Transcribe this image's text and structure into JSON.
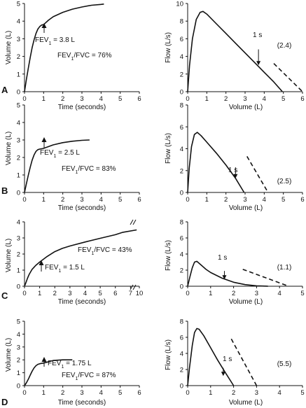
{
  "chart_data": [
    {
      "type": "line",
      "panel": "A",
      "kind": "spirogram",
      "xlabel": "Time (seconds)",
      "ylabel": "Volume (L)",
      "xlim": [
        0,
        6
      ],
      "ylim": [
        0,
        5
      ],
      "xticks": [
        "0",
        "1",
        "2",
        "3",
        "4",
        "5",
        "6"
      ],
      "yticks": [
        "0",
        "1",
        "2",
        "3",
        "4",
        "5"
      ],
      "series": [
        {
          "x": [
            0,
            0.1,
            0.2,
            0.3,
            0.4,
            0.5,
            0.6,
            0.7,
            0.8,
            0.9,
            1.0,
            1.25,
            1.5,
            2.0,
            2.5,
            3.0,
            3.5,
            4.0,
            4.15
          ],
          "y": [
            0,
            0.7,
            1.35,
            1.95,
            2.5,
            2.95,
            3.3,
            3.55,
            3.7,
            3.78,
            3.8,
            4.05,
            4.25,
            4.5,
            4.68,
            4.8,
            4.9,
            4.95,
            4.97
          ]
        }
      ],
      "annotations": {
        "fev1_base": "FEV",
        "fev1_sub": "1",
        "fev1_value": " = 3.8 L",
        "ratio_base": "FEV",
        "ratio_sub": "1",
        "ratio_value": "/FVC = 76%"
      }
    },
    {
      "type": "line",
      "panel": "A",
      "kind": "flow-volume",
      "xlabel": "Volume (L)",
      "ylabel": "Flow (L/s)",
      "xlim": [
        0,
        6
      ],
      "ylim": [
        0,
        10
      ],
      "xticks": [
        "0",
        "1",
        "2",
        "3",
        "4",
        "5",
        "6"
      ],
      "yticks": [
        "0",
        "2",
        "4",
        "6",
        "8",
        "10"
      ],
      "series": [
        {
          "x": [
            0,
            0.1,
            0.25,
            0.45,
            0.65,
            0.8,
            1.0,
            1.5,
            2.0,
            2.5,
            3.0,
            3.5,
            4.0,
            4.5,
            4.95
          ],
          "y": [
            0,
            3.0,
            6.0,
            8.2,
            9.0,
            9.1,
            8.8,
            7.7,
            6.6,
            5.5,
            4.4,
            3.3,
            2.2,
            1.1,
            0
          ]
        }
      ],
      "dashed": [
        4.5,
        3.2,
        6.0,
        0
      ],
      "marker": {
        "x": 3.7,
        "y_top": 4.8,
        "y_tip": 3.0,
        "label": "1 s"
      },
      "value_label": "(2.4)"
    },
    {
      "type": "line",
      "panel": "B",
      "kind": "spirogram",
      "xlabel": "Time (seconds)",
      "ylabel": "Volume (L)",
      "xlim": [
        0,
        6
      ],
      "ylim": [
        0,
        5
      ],
      "xticks": [
        "0",
        "1",
        "2",
        "3",
        "4",
        "5",
        "6"
      ],
      "yticks": [
        "0",
        "1",
        "2",
        "3",
        "4",
        "5"
      ],
      "series": [
        {
          "x": [
            0,
            0.1,
            0.2,
            0.3,
            0.4,
            0.5,
            0.6,
            0.7,
            0.8,
            0.9,
            1.0,
            1.5,
            2.0,
            2.5,
            3.0,
            3.4
          ],
          "y": [
            0,
            0.5,
            1.0,
            1.45,
            1.85,
            2.15,
            2.35,
            2.45,
            2.48,
            2.5,
            2.52,
            2.72,
            2.85,
            2.93,
            2.98,
            3.0
          ]
        }
      ],
      "annotations": {
        "fev1_base": "FEV",
        "fev1_sub": "1",
        "fev1_value": " = 2.5 L",
        "ratio_base": "FEV",
        "ratio_sub": "1",
        "ratio_value": "/FVC = 83%"
      }
    },
    {
      "type": "line",
      "panel": "B",
      "kind": "flow-volume",
      "xlabel": "Volume (L)",
      "ylabel": "Flow (L/s)",
      "xlim": [
        0,
        6
      ],
      "ylim": [
        0,
        8
      ],
      "xticks": [
        "0",
        "1",
        "2",
        "3",
        "4",
        "5",
        "6"
      ],
      "yticks": [
        "0",
        "2",
        "4",
        "6",
        "8"
      ],
      "series": [
        {
          "x": [
            0,
            0.08,
            0.2,
            0.35,
            0.5,
            0.7,
            1.0,
            1.5,
            2.0,
            2.5,
            2.95
          ],
          "y": [
            0,
            2.2,
            4.2,
            5.3,
            5.5,
            5.2,
            4.6,
            3.6,
            2.5,
            1.3,
            0
          ]
        }
      ],
      "dashed": [
        3.1,
        3.3,
        4.2,
        0
      ],
      "marker": {
        "x": 2.5,
        "y_top": 2.3,
        "y_tip": 1.3,
        "label": "1 s"
      },
      "value_label": "(2.5)"
    },
    {
      "type": "line",
      "panel": "C",
      "kind": "spirogram",
      "xlabel": "Time (seconds)",
      "ylabel": "Volume (L)",
      "xlim": [
        0,
        10
      ],
      "ylim": [
        0,
        4
      ],
      "xticks": [
        "0",
        "1",
        "2",
        "3",
        "4",
        "5",
        "6",
        "7",
        "10"
      ],
      "yticks": [
        "0",
        "1",
        "2",
        "3",
        "4"
      ],
      "series": [
        {
          "x": [
            0,
            0.1,
            0.2,
            0.3,
            0.5,
            0.75,
            1.0,
            1.5,
            2.0,
            2.5,
            3.0,
            4.0,
            5.0,
            6.0,
            6.5,
            7.5
          ],
          "y": [
            0,
            0.25,
            0.5,
            0.72,
            1.05,
            1.3,
            1.5,
            1.85,
            2.15,
            2.35,
            2.5,
            2.75,
            2.98,
            3.2,
            3.35,
            3.5
          ]
        }
      ],
      "annotations": {
        "fev1_base": "FEV",
        "fev1_sub": "1",
        "fev1_value": " = 1.5 L",
        "ratio_base": "FEV",
        "ratio_sub": "1",
        "ratio_value": "/FVC = 43%"
      }
    },
    {
      "type": "line",
      "panel": "C",
      "kind": "flow-volume",
      "xlabel": "Volume (L)",
      "ylabel": "Flow (L/s)",
      "xlim": [
        0,
        5
      ],
      "ylim": [
        0,
        8
      ],
      "xticks": [
        "0",
        "1",
        "2",
        "3",
        "4",
        "5"
      ],
      "yticks": [
        "0",
        "2",
        "4",
        "6",
        "8"
      ],
      "series": [
        {
          "x": [
            0,
            0.1,
            0.2,
            0.3,
            0.4,
            0.6,
            0.8,
            1.0,
            1.5,
            2.0,
            2.5,
            3.0,
            3.5
          ],
          "y": [
            0,
            1.2,
            2.3,
            3.0,
            3.1,
            2.6,
            2.1,
            1.7,
            1.0,
            0.5,
            0.2,
            0.05,
            0
          ]
        }
      ],
      "dashed": [
        2.4,
        2.1,
        4.4,
        0
      ],
      "marker": {
        "x": 1.6,
        "y_top": 1.9,
        "y_tip": 0.85,
        "label": "1 s"
      },
      "value_label": "(1.1)"
    },
    {
      "type": "line",
      "panel": "D",
      "kind": "spirogram",
      "xlabel": "Time (seconds)",
      "ylabel": "Volume (L)",
      "xlim": [
        0,
        6
      ],
      "ylim": [
        0,
        5
      ],
      "xticks": [
        "0",
        "1",
        "2",
        "3",
        "4",
        "5",
        "6"
      ],
      "yticks": [
        "0",
        "1",
        "2",
        "3",
        "4",
        "5"
      ],
      "series": [
        {
          "x": [
            0,
            0.1,
            0.2,
            0.3,
            0.4,
            0.5,
            0.6,
            0.7,
            0.8,
            0.9,
            1.0,
            1.5,
            2.0,
            2.5
          ],
          "y": [
            0,
            0.22,
            0.5,
            0.82,
            1.12,
            1.38,
            1.55,
            1.65,
            1.7,
            1.73,
            1.75,
            1.95,
            2.0,
            2.0
          ]
        }
      ],
      "annotations": {
        "fev1_base": "FEV",
        "fev1_sub": "1",
        "fev1_value": " = 1.75 L",
        "ratio_base": "FEV",
        "ratio_sub": "1",
        "ratio_value": "/FVC = 87%"
      }
    },
    {
      "type": "line",
      "panel": "D",
      "kind": "flow-volume",
      "xlabel": "Volume (L)",
      "ylabel": "Flow (L/s)",
      "xlim": [
        0,
        5
      ],
      "ylim": [
        0,
        8
      ],
      "xticks": [
        "0",
        "1",
        "2",
        "3",
        "4",
        "5"
      ],
      "yticks": [
        "0",
        "2",
        "4",
        "6",
        "8"
      ],
      "series": [
        {
          "x": [
            0,
            0.08,
            0.2,
            0.3,
            0.4,
            0.5,
            0.7,
            1.0,
            1.3,
            1.6,
            2.0
          ],
          "y": [
            0,
            2.2,
            5.0,
            6.6,
            7.1,
            7.0,
            6.2,
            4.7,
            3.2,
            1.8,
            0
          ]
        }
      ],
      "dashed": [
        1.9,
        5.8,
        3.0,
        0
      ],
      "marker": {
        "x": 1.55,
        "y_top": 2.2,
        "y_tip": 1.2,
        "label": "1 s"
      },
      "value_label": "(5.5)"
    }
  ]
}
